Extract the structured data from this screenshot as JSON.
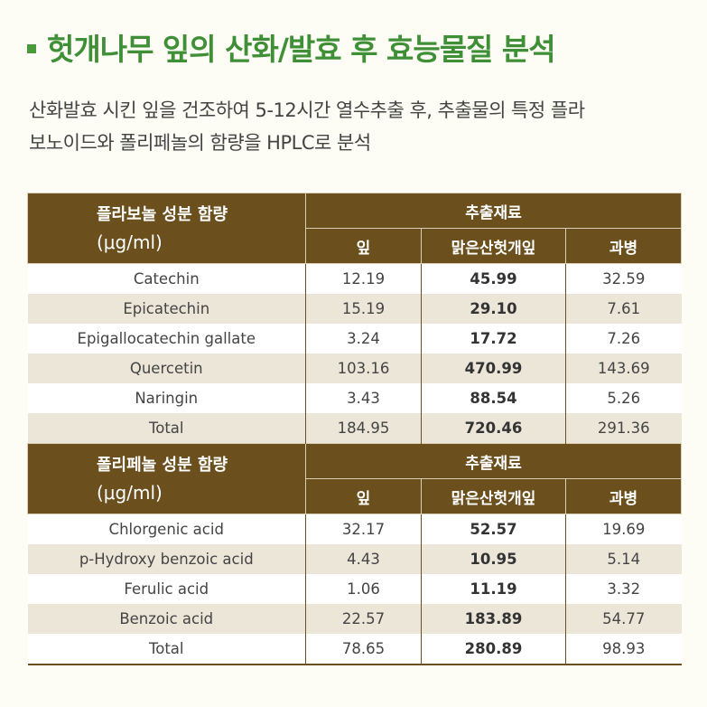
{
  "title": "헛개나무 잎의 산화/발효 후 효능물질 분석",
  "subtitle_line1": "산화발효 시킨 잎을 건조하여 5-12시간 열수추출 후, 추출물의 특정 플라",
  "subtitle_line2": "보노이드와 폴리페놀의 함량을 HPLC로 분석",
  "colors": {
    "accent": "#3e8f36",
    "header_bg": "#6b4f1d",
    "stripe": "#ece6d9"
  },
  "table1": {
    "heading": "플라보놀 성분 함량",
    "unit": "(μg/ml)",
    "group": "추출재료",
    "columns": [
      "잎",
      "맑은산헛개잎",
      "과병"
    ],
    "rows": [
      {
        "name": "Catechin",
        "v1": "12.19",
        "v2": "45.99",
        "v3": "32.59"
      },
      {
        "name": "Epicatechin",
        "v1": "15.19",
        "v2": "29.10",
        "v3": "7.61"
      },
      {
        "name": "Epigallocatechin gallate",
        "v1": "3.24",
        "v2": "17.72",
        "v3": "7.26"
      },
      {
        "name": "Quercetin",
        "v1": "103.16",
        "v2": "470.99",
        "v3": "143.69"
      },
      {
        "name": "Naringin",
        "v1": "3.43",
        "v2": "88.54",
        "v3": "5.26"
      },
      {
        "name": "Total",
        "v1": "184.95",
        "v2": "720.46",
        "v3": "291.36"
      }
    ]
  },
  "table2": {
    "heading": "폴리페놀 성분 함량",
    "unit": "(μg/ml)",
    "group": "추출재료",
    "columns": [
      "잎",
      "맑은산헛개잎",
      "과병"
    ],
    "rows": [
      {
        "name": "Chlorgenic acid",
        "v1": "32.17",
        "v2": "52.57",
        "v3": "19.69"
      },
      {
        "name": "p-Hydroxy benzoic acid",
        "v1": "4.43",
        "v2": "10.95",
        "v3": "5.14"
      },
      {
        "name": "Ferulic acid",
        "v1": "1.06",
        "v2": "11.19",
        "v3": "3.32"
      },
      {
        "name": "Benzoic acid",
        "v1": "22.57",
        "v2": "183.89",
        "v3": "54.77"
      },
      {
        "name": "Total",
        "v1": "78.65",
        "v2": "280.89",
        "v3": "98.93"
      }
    ]
  }
}
